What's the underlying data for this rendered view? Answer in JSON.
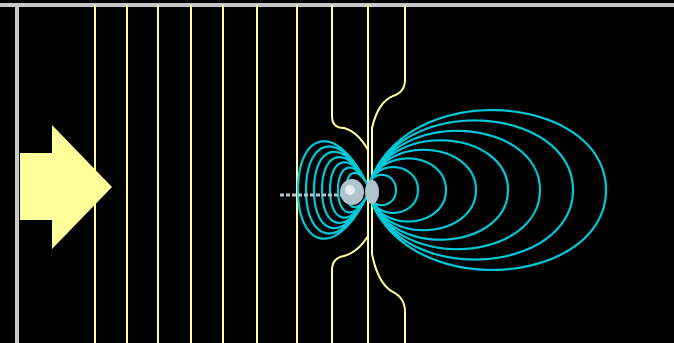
{
  "colors": {
    "background": "#000000",
    "border": "#c8c8c8",
    "field_lines": "#ffff99",
    "dipole_lines": "#00c8d8",
    "arrow": "#ffff99",
    "molecule": "#b0c4ce"
  },
  "icons": {
    "direction_arrow": "right-arrow-icon",
    "molecule": "molecule-icon"
  }
}
